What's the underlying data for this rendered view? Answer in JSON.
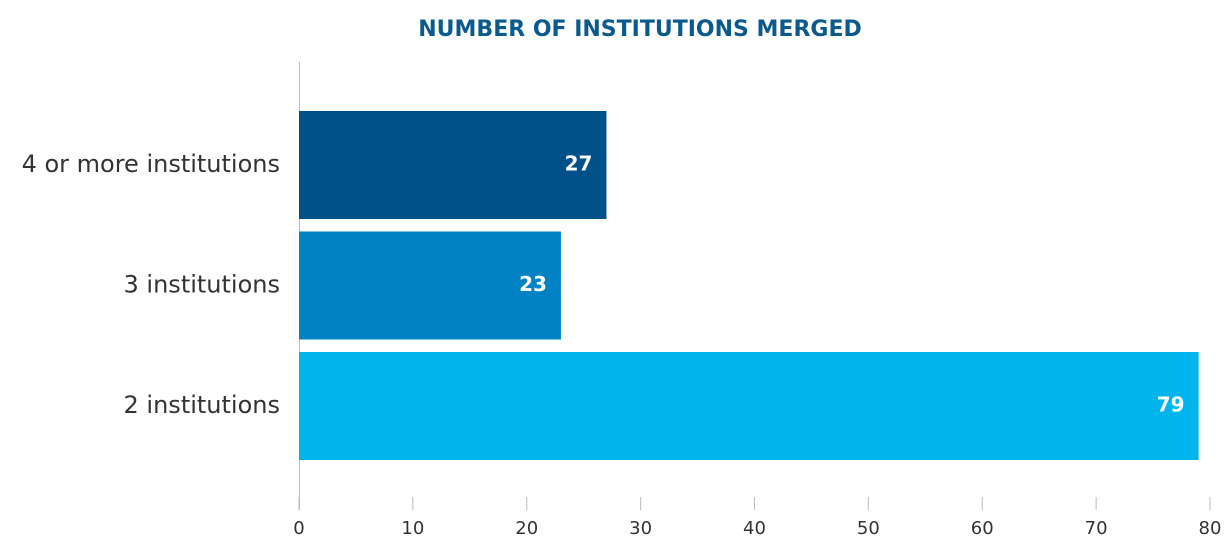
{
  "chart_data": {
    "type": "bar",
    "orientation": "horizontal",
    "title": "NUMBER OF INSTITUTIONS MERGED",
    "categories": [
      "4 or more institutions",
      "3 institutions",
      "2 institutions"
    ],
    "values": [
      27,
      23,
      79
    ],
    "colors": [
      "#00518a",
      "#0082c4",
      "#00b5ec"
    ],
    "xlim": [
      0,
      80
    ],
    "xticks": [
      0,
      10,
      20,
      30,
      40,
      50,
      60,
      70,
      80
    ]
  }
}
